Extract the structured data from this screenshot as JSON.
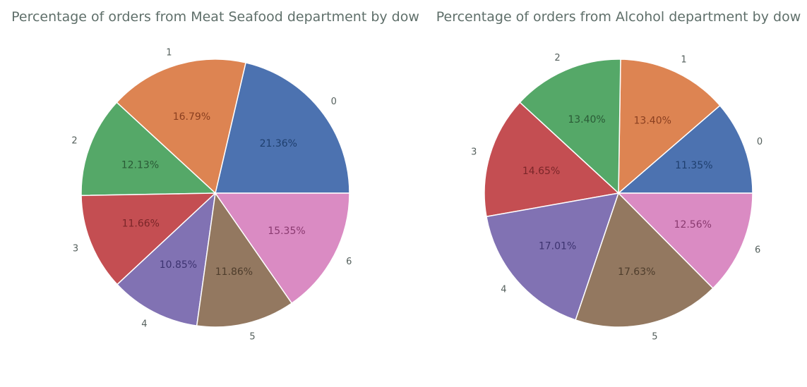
{
  "chart_data": [
    {
      "type": "pie",
      "title": "Percentage of orders from Meat Seafood department by dow",
      "categories": [
        "0",
        "1",
        "2",
        "3",
        "4",
        "5",
        "6"
      ],
      "values": [
        21.36,
        16.79,
        12.13,
        11.66,
        10.85,
        11.86,
        15.35
      ],
      "value_labels": [
        "21.36%",
        "16.79%",
        "12.13%",
        "11.66%",
        "10.85%",
        "11.86%",
        "15.35%"
      ],
      "start_angle_deg": 0,
      "direction": "counterclockwise",
      "colors": [
        "#4c72b0",
        "#dd8452",
        "#55a868",
        "#c44e52",
        "#8172b3",
        "#937860",
        "#da8bc3"
      ]
    },
    {
      "type": "pie",
      "title": "Percentage of orders from Alcohol department by dow",
      "categories": [
        "0",
        "1",
        "2",
        "3",
        "4",
        "5",
        "6"
      ],
      "values": [
        11.35,
        13.4,
        13.4,
        14.65,
        17.01,
        17.63,
        12.56
      ],
      "value_labels": [
        "11.35%",
        "13.40%",
        "13.40%",
        "14.65%",
        "17.01%",
        "17.63%",
        "12.56%"
      ],
      "start_angle_deg": 0,
      "direction": "counterclockwise",
      "colors": [
        "#4c72b0",
        "#dd8452",
        "#55a868",
        "#c44e52",
        "#8172b3",
        "#937860",
        "#da8bc3"
      ]
    }
  ]
}
